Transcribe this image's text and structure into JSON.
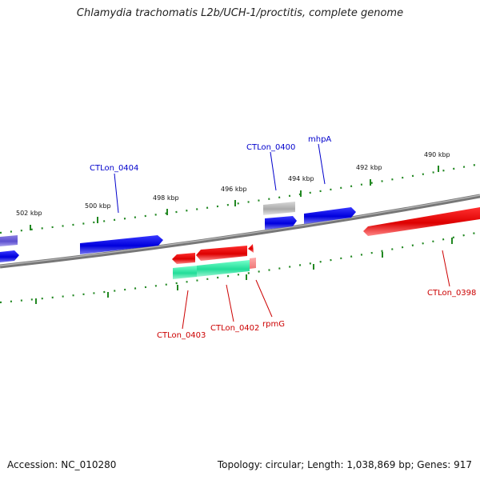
{
  "title": "Chlamydia trachomatis L2b/UCH-1/proctitis, complete genome",
  "footer": {
    "accession": "Accession: NC_010280",
    "summary": "Topology: circular; Length: 1,038,869 bp; Genes: 917"
  },
  "scale": {
    "kbp_ticks": [
      "502 kbp",
      "500 kbp",
      "498 kbp",
      "496 kbp",
      "494 kbp",
      "492 kbp",
      "490 kbp"
    ]
  },
  "genes": {
    "forward_labels": [
      "CTLon_0404",
      "CTLon_0400",
      "mhpA"
    ],
    "reverse_labels": [
      "CTLon_0403",
      "CTLon_0402",
      "rpmG",
      "CTLon_0398"
    ]
  },
  "colors": {
    "forward_gene": "#0000dd",
    "reverse_gene": "#ee0000",
    "rna_gene": "#22dd99",
    "pseudo_gene": "#aaaaaa",
    "backbone": "#888888",
    "ticks": "#228822",
    "forward_label": "#0000cc",
    "reverse_label": "#cc0000"
  }
}
